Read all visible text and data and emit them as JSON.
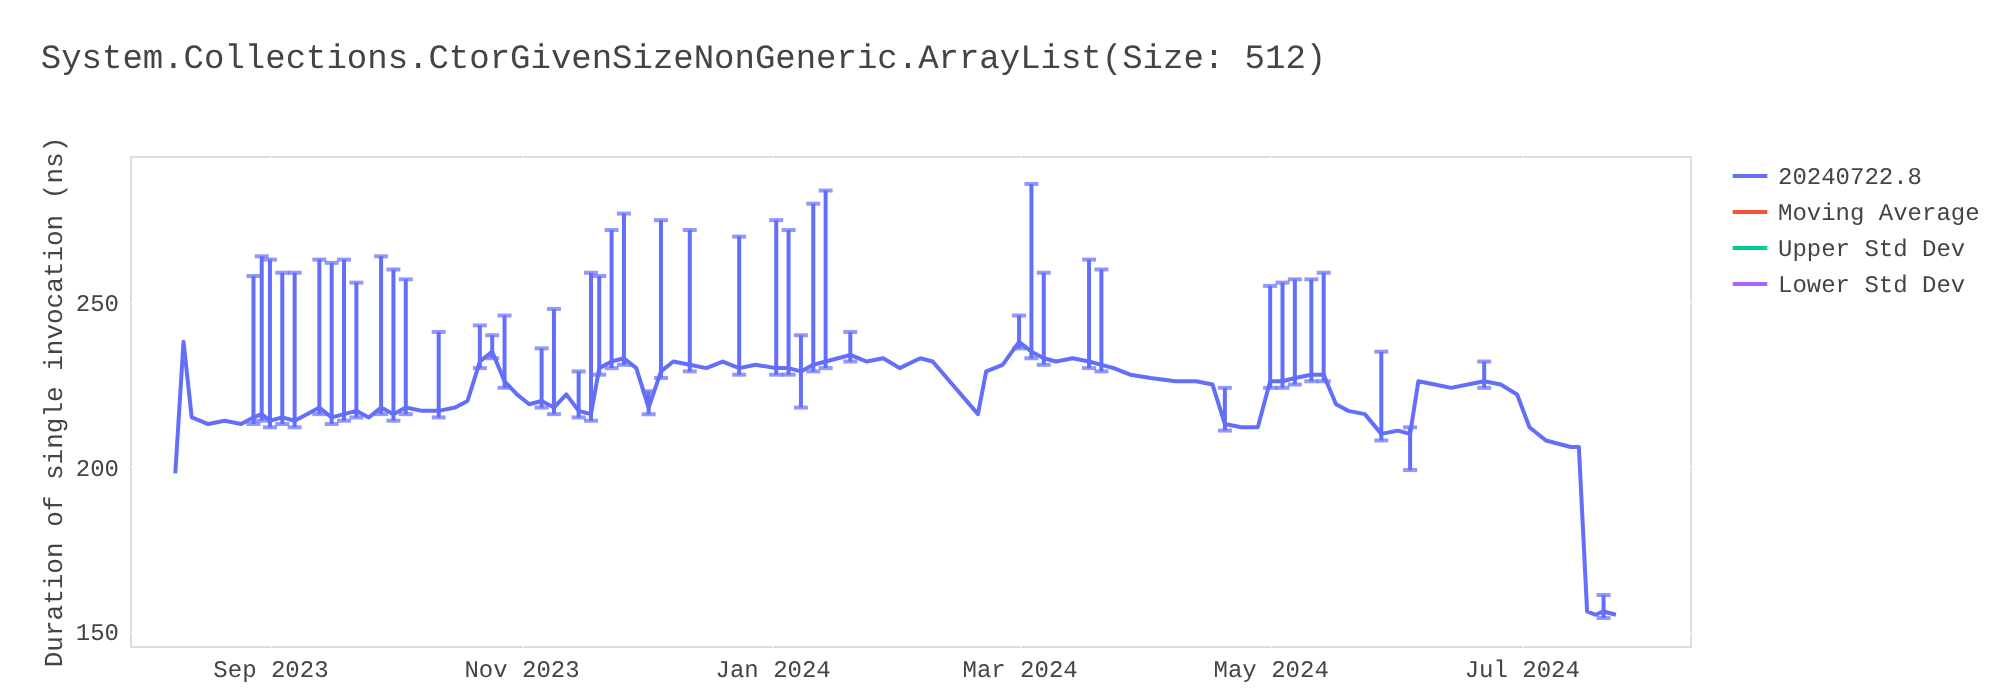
{
  "chart_data": {
    "type": "line",
    "title": "System.Collections.CtorGivenSizeNonGeneric.ArrayList(Size: 512)",
    "ylabel": "Duration of single invocation (ns)",
    "xlim": [
      "2023-07-29",
      "2024-08-11"
    ],
    "ylim": [
      145.5,
      294.5
    ],
    "xticks": [
      {
        "value": "2023-09-01",
        "label": "Sep 2023"
      },
      {
        "value": "2023-11-01",
        "label": "Nov 2023"
      },
      {
        "value": "2024-01-01",
        "label": "Jan 2024"
      },
      {
        "value": "2024-03-01",
        "label": "Mar 2024"
      },
      {
        "value": "2024-05-01",
        "label": "May 2024"
      },
      {
        "value": "2024-07-01",
        "label": "Jul 2024"
      }
    ],
    "yticks": [
      150,
      200,
      250
    ],
    "grid": true,
    "legend": "top right",
    "marker": "none",
    "line_style": "solid",
    "x": [
      "2023-08-09",
      "2023-08-11",
      "2023-08-13",
      "2023-08-17",
      "2023-08-21",
      "2023-08-25",
      "2023-08-28",
      "2023-08-30",
      "2023-09-01",
      "2023-09-04",
      "2023-09-07",
      "2023-09-10",
      "2023-09-13",
      "2023-09-16",
      "2023-09-19",
      "2023-09-22",
      "2023-09-25",
      "2023-09-28",
      "2023-10-01",
      "2023-10-04",
      "2023-10-08",
      "2023-10-12",
      "2023-10-16",
      "2023-10-19",
      "2023-10-22",
      "2023-10-25",
      "2023-10-28",
      "2023-10-31",
      "2023-11-03",
      "2023-11-06",
      "2023-11-09",
      "2023-11-12",
      "2023-11-15",
      "2023-11-18",
      "2023-11-20",
      "2023-11-23",
      "2023-11-26",
      "2023-11-29",
      "2023-12-02",
      "2023-12-05",
      "2023-12-08",
      "2023-12-12",
      "2023-12-16",
      "2023-12-20",
      "2023-12-24",
      "2023-12-28",
      "2024-01-02",
      "2024-01-05",
      "2024-01-08",
      "2024-01-11",
      "2024-01-14",
      "2024-01-17",
      "2024-01-20",
      "2024-01-24",
      "2024-01-28",
      "2024-02-01",
      "2024-02-06",
      "2024-02-09",
      "2024-02-20",
      "2024-02-22",
      "2024-02-26",
      "2024-03-01",
      "2024-03-04",
      "2024-03-07",
      "2024-03-10",
      "2024-03-14",
      "2024-03-18",
      "2024-03-21",
      "2024-03-24",
      "2024-03-28",
      "2024-04-02",
      "2024-04-08",
      "2024-04-13",
      "2024-04-17",
      "2024-04-20",
      "2024-04-24",
      "2024-04-28",
      "2024-05-01",
      "2024-05-04",
      "2024-05-07",
      "2024-05-11",
      "2024-05-14",
      "2024-05-17",
      "2024-05-20",
      "2024-05-24",
      "2024-05-28",
      "2024-06-01",
      "2024-06-04",
      "2024-06-06",
      "2024-06-10",
      "2024-06-14",
      "2024-06-18",
      "2024-06-22",
      "2024-06-26",
      "2024-06-30",
      "2024-07-03",
      "2024-07-07",
      "2024-07-10",
      "2024-07-13",
      "2024-07-15",
      "2024-07-17",
      "2024-07-19",
      "2024-07-21",
      "2024-07-24"
    ],
    "series": [
      {
        "name": "20240722.8",
        "color": "#636efa",
        "values": [
          198,
          238,
          215,
          213,
          214,
          213,
          215,
          216,
          214,
          215,
          214,
          216,
          218,
          215,
          216,
          217,
          215,
          218,
          216,
          218,
          217,
          217,
          218,
          220,
          232,
          235,
          226,
          222,
          219,
          220,
          218,
          222,
          217,
          216,
          230,
          232,
          233,
          230,
          218,
          229,
          232,
          231,
          230,
          232,
          230,
          231,
          230,
          230,
          229,
          231,
          232,
          233,
          234,
          232,
          233,
          230,
          233,
          232,
          216,
          229,
          231,
          238,
          235,
          233,
          232,
          233,
          232,
          231,
          230,
          228,
          227,
          226,
          226,
          225,
          213,
          212,
          212,
          226,
          226,
          227,
          228,
          228,
          219,
          217,
          216,
          210,
          211,
          210,
          226,
          225,
          224,
          225,
          226,
          225,
          222,
          212,
          208,
          207,
          206,
          206,
          156,
          155,
          156,
          155
        ],
        "errors": [
          null,
          null,
          null,
          null,
          null,
          null,
          [
            213,
            258
          ],
          [
            214,
            264
          ],
          [
            212,
            263
          ],
          [
            213,
            259
          ],
          [
            212,
            259
          ],
          null,
          [
            216,
            263
          ],
          [
            213,
            262
          ],
          [
            214,
            263
          ],
          [
            215,
            256
          ],
          null,
          [
            216,
            264
          ],
          [
            214,
            260
          ],
          [
            216,
            257
          ],
          null,
          [
            215,
            241
          ],
          null,
          null,
          [
            230,
            243
          ],
          [
            233,
            240
          ],
          [
            224,
            246
          ],
          null,
          null,
          [
            218,
            236
          ],
          [
            216,
            248
          ],
          null,
          [
            215,
            229
          ],
          [
            214,
            259
          ],
          [
            228,
            258
          ],
          [
            230,
            272
          ],
          [
            231,
            277
          ],
          null,
          [
            216,
            223
          ],
          [
            227,
            275
          ],
          null,
          [
            229,
            272
          ],
          null,
          null,
          [
            228,
            270
          ],
          null,
          [
            228,
            275
          ],
          [
            228,
            272
          ],
          [
            218,
            240
          ],
          [
            229,
            280
          ],
          [
            230,
            284
          ],
          null,
          [
            232,
            241
          ],
          null,
          null,
          null,
          null,
          null,
          null,
          null,
          null,
          [
            236,
            246
          ],
          [
            233,
            286
          ],
          [
            231,
            259
          ],
          null,
          null,
          [
            230,
            263
          ],
          [
            229,
            260
          ],
          null,
          null,
          null,
          null,
          null,
          null,
          [
            211,
            224
          ],
          null,
          null,
          [
            224,
            255
          ],
          [
            224,
            256
          ],
          [
            225,
            257
          ],
          [
            226,
            257
          ],
          [
            226,
            259
          ],
          null,
          null,
          null,
          [
            208,
            235
          ],
          null,
          [
            199,
            212
          ],
          null,
          null,
          null,
          null,
          [
            224,
            232
          ],
          null,
          null,
          null,
          null,
          null,
          null,
          null,
          null,
          null,
          [
            154,
            161
          ],
          null
        ]
      },
      {
        "name": "Moving Average",
        "color": "#ef553b",
        "values": [
          null,
          null,
          null,
          null,
          null,
          null,
          null,
          null,
          null,
          null,
          null,
          null,
          null,
          null,
          null,
          null,
          null,
          null,
          null,
          null,
          null,
          null,
          null,
          null,
          null,
          null,
          null,
          null,
          null,
          null,
          null,
          null,
          null,
          null,
          null,
          null,
          null,
          null,
          null,
          null,
          null,
          null,
          null,
          null,
          null,
          null,
          null,
          null,
          null,
          null,
          null,
          null,
          null,
          null,
          null,
          null,
          null,
          null,
          null,
          null,
          null,
          null,
          null,
          null,
          null,
          null,
          null,
          null,
          null,
          null,
          null,
          null,
          null,
          null,
          null,
          null,
          null,
          null,
          null,
          null,
          null,
          null,
          null,
          null,
          null,
          null,
          null,
          null,
          null,
          null,
          null,
          null,
          null,
          null,
          null,
          null,
          null,
          null,
          null,
          null,
          null,
          null,
          null,
          null
        ]
      },
      {
        "name": "Upper Std Dev",
        "color": "#00cc96",
        "values": [
          null,
          null,
          null,
          null,
          null,
          null,
          null,
          null,
          null,
          null,
          null,
          null,
          null,
          null,
          null,
          null,
          null,
          null,
          null,
          null,
          null,
          null,
          null,
          null,
          null,
          null,
          null,
          null,
          null,
          null,
          null,
          null,
          null,
          null,
          null,
          null,
          null,
          null,
          null,
          null,
          null,
          null,
          null,
          null,
          null,
          null,
          null,
          null,
          null,
          null,
          null,
          null,
          null,
          null,
          null,
          null,
          null,
          null,
          null,
          null,
          null,
          null,
          null,
          null,
          null,
          null,
          null,
          null,
          null,
          null,
          null,
          null,
          null,
          null,
          null,
          null,
          null,
          null,
          null,
          null,
          null,
          null,
          null,
          null,
          null,
          null,
          null,
          null,
          null,
          null,
          null,
          null,
          null,
          null,
          null,
          null,
          null,
          null,
          null,
          null,
          null,
          null,
          null,
          null
        ]
      },
      {
        "name": "Lower Std Dev",
        "color": "#ab63fa",
        "values": [
          null,
          null,
          null,
          null,
          null,
          null,
          null,
          null,
          null,
          null,
          null,
          null,
          null,
          null,
          null,
          null,
          null,
          null,
          null,
          null,
          null,
          null,
          null,
          null,
          null,
          null,
          null,
          null,
          null,
          null,
          null,
          null,
          null,
          null,
          null,
          null,
          null,
          null,
          null,
          null,
          null,
          null,
          null,
          null,
          null,
          null,
          null,
          null,
          null,
          null,
          null,
          null,
          null,
          null,
          null,
          null,
          null,
          null,
          null,
          null,
          null,
          null,
          null,
          null,
          null,
          null,
          null,
          null,
          null,
          null,
          null,
          null,
          null,
          null,
          null,
          null,
          null,
          null,
          null,
          null,
          null,
          null,
          null,
          null,
          null,
          null,
          null,
          null,
          null,
          null,
          null,
          null,
          null,
          null,
          null,
          null,
          null,
          null,
          null,
          null,
          null,
          null,
          null,
          null
        ]
      }
    ]
  }
}
